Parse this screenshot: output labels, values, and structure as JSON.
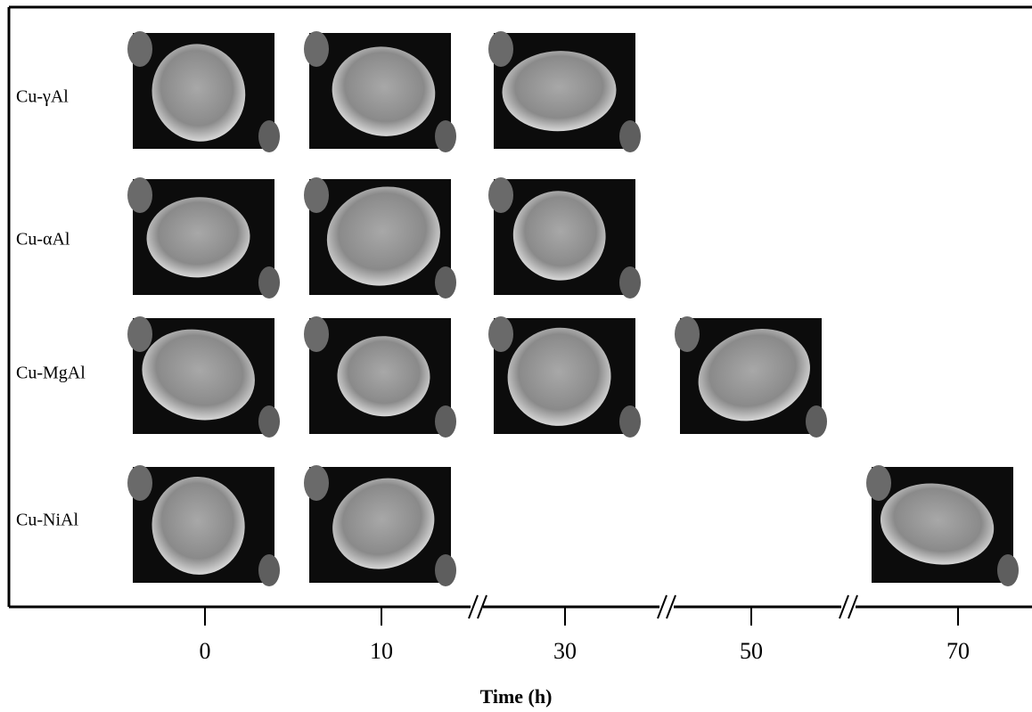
{
  "rows": [
    {
      "label": "Cu-γAl"
    },
    {
      "label": "Cu-αAl"
    },
    {
      "label": "Cu-MgAl"
    },
    {
      "label": "Cu-NiAl"
    }
  ],
  "axis": {
    "ticks": [
      "0",
      "10",
      "30",
      "50",
      "70"
    ],
    "label": "Time (h)"
  }
}
